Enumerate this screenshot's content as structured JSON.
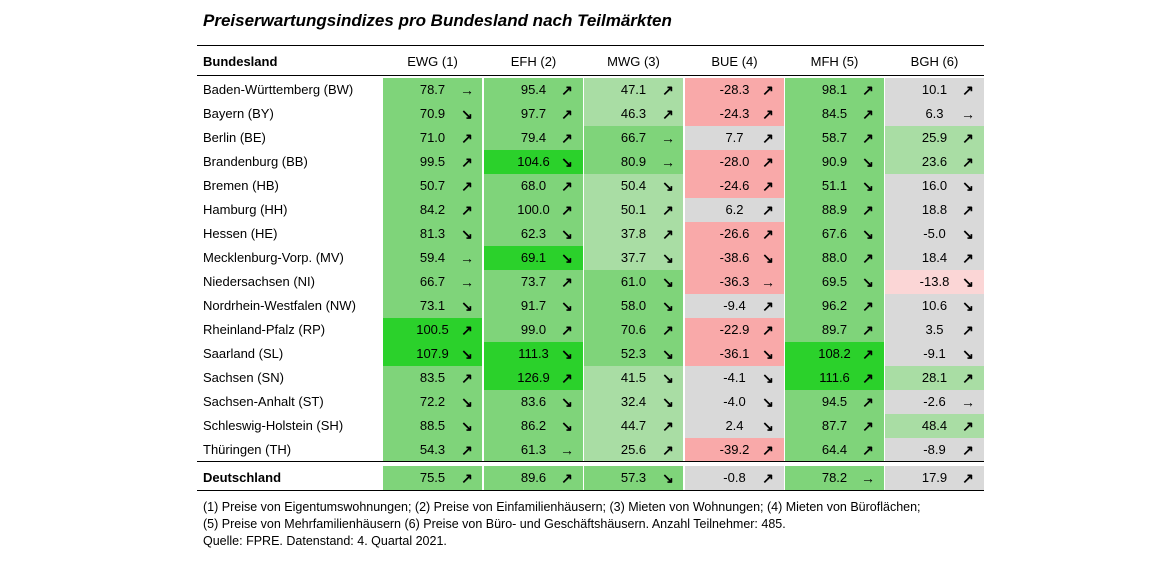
{
  "title": "Preiserwartungsindizes pro Bundesland nach Teilmärkten",
  "header": {
    "row_label": "Bundesland",
    "columns": [
      "EWG (1)",
      "EFH (2)",
      "MWG (3)",
      "BUE (4)",
      "MFH (5)",
      "BGH (6)"
    ]
  },
  "colors": {
    "light_green": "#a9dda4",
    "medium_green": "#7fd47a",
    "bright_green": "#2bd12b",
    "grey": "#d9d9d9",
    "pink": "#f9a9a9",
    "light_pink": "#fbd6d6"
  },
  "rows": [
    {
      "label": "Baden-Württemberg (BW)",
      "values": [
        "78.7",
        "95.4",
        "47.1",
        "-28.3",
        "98.1",
        "10.1"
      ],
      "arrows": [
        "right",
        "up",
        "up",
        "up",
        "up",
        "up"
      ],
      "colors": [
        "medium_green",
        "medium_green",
        "light_green",
        "pink",
        "medium_green",
        "grey"
      ]
    },
    {
      "label": "Bayern (BY)",
      "values": [
        "70.9",
        "97.7",
        "46.3",
        "-24.3",
        "84.5",
        "6.3"
      ],
      "arrows": [
        "down",
        "up",
        "up",
        "up",
        "up",
        "right"
      ],
      "colors": [
        "medium_green",
        "medium_green",
        "light_green",
        "pink",
        "medium_green",
        "grey"
      ]
    },
    {
      "label": "Berlin (BE)",
      "values": [
        "71.0",
        "79.4",
        "66.7",
        "7.7",
        "58.7",
        "25.9"
      ],
      "arrows": [
        "up",
        "up",
        "right",
        "up",
        "up",
        "up"
      ],
      "colors": [
        "medium_green",
        "medium_green",
        "medium_green",
        "grey",
        "medium_green",
        "light_green"
      ]
    },
    {
      "label": "Brandenburg (BB)",
      "values": [
        "99.5",
        "104.6",
        "80.9",
        "-28.0",
        "90.9",
        "23.6"
      ],
      "arrows": [
        "up",
        "down",
        "right",
        "up",
        "down",
        "up"
      ],
      "colors": [
        "medium_green",
        "bright_green",
        "medium_green",
        "pink",
        "medium_green",
        "light_green"
      ]
    },
    {
      "label": "Bremen (HB)",
      "values": [
        "50.7",
        "68.0",
        "50.4",
        "-24.6",
        "51.1",
        "16.0"
      ],
      "arrows": [
        "up",
        "up",
        "down",
        "up",
        "down",
        "down"
      ],
      "colors": [
        "medium_green",
        "medium_green",
        "light_green",
        "pink",
        "medium_green",
        "grey"
      ]
    },
    {
      "label": "Hamburg (HH)",
      "values": [
        "84.2",
        "100.0",
        "50.1",
        "6.2",
        "88.9",
        "18.8"
      ],
      "arrows": [
        "up",
        "up",
        "up",
        "up",
        "up",
        "up"
      ],
      "colors": [
        "medium_green",
        "medium_green",
        "light_green",
        "grey",
        "medium_green",
        "grey"
      ]
    },
    {
      "label": "Hessen (HE)",
      "values": [
        "81.3",
        "62.3",
        "37.8",
        "-26.6",
        "67.6",
        "-5.0"
      ],
      "arrows": [
        "down",
        "down",
        "up",
        "up",
        "down",
        "down"
      ],
      "colors": [
        "medium_green",
        "medium_green",
        "light_green",
        "pink",
        "medium_green",
        "grey"
      ]
    },
    {
      "label": "Mecklenburg-Vorp. (MV)",
      "values": [
        "59.4",
        "69.1",
        "37.7",
        "-38.6",
        "88.0",
        "18.4"
      ],
      "arrows": [
        "right",
        "down",
        "down",
        "down",
        "up",
        "up"
      ],
      "colors": [
        "medium_green",
        "bright_green",
        "light_green",
        "pink",
        "medium_green",
        "grey"
      ]
    },
    {
      "label": "Niedersachsen (NI)",
      "values": [
        "66.7",
        "73.7",
        "61.0",
        "-36.3",
        "69.5",
        "-13.8"
      ],
      "arrows": [
        "right",
        "up",
        "down",
        "right",
        "down",
        "down"
      ],
      "colors": [
        "medium_green",
        "medium_green",
        "medium_green",
        "pink",
        "medium_green",
        "light_pink"
      ]
    },
    {
      "label": "Nordrhein-Westfalen (NW)",
      "values": [
        "73.1",
        "91.7",
        "58.0",
        "-9.4",
        "96.2",
        "10.6"
      ],
      "arrows": [
        "down",
        "down",
        "down",
        "up",
        "up",
        "down"
      ],
      "colors": [
        "medium_green",
        "medium_green",
        "medium_green",
        "grey",
        "medium_green",
        "grey"
      ]
    },
    {
      "label": "Rheinland-Pfalz (RP)",
      "values": [
        "100.5",
        "99.0",
        "70.6",
        "-22.9",
        "89.7",
        "3.5"
      ],
      "arrows": [
        "up",
        "up",
        "up",
        "up",
        "up",
        "up"
      ],
      "colors": [
        "bright_green",
        "medium_green",
        "medium_green",
        "pink",
        "medium_green",
        "grey"
      ]
    },
    {
      "label": "Saarland (SL)",
      "values": [
        "107.9",
        "111.3",
        "52.3",
        "-36.1",
        "108.2",
        "-9.1"
      ],
      "arrows": [
        "down",
        "down",
        "down",
        "down",
        "up",
        "down"
      ],
      "colors": [
        "bright_green",
        "bright_green",
        "medium_green",
        "pink",
        "bright_green",
        "grey"
      ]
    },
    {
      "label": "Sachsen (SN)",
      "values": [
        "83.5",
        "126.9",
        "41.5",
        "-4.1",
        "111.6",
        "28.1"
      ],
      "arrows": [
        "up",
        "up",
        "down",
        "down",
        "up",
        "up"
      ],
      "colors": [
        "medium_green",
        "bright_green",
        "light_green",
        "grey",
        "bright_green",
        "light_green"
      ]
    },
    {
      "label": "Sachsen-Anhalt (ST)",
      "values": [
        "72.2",
        "83.6",
        "32.4",
        "-4.0",
        "94.5",
        "-2.6"
      ],
      "arrows": [
        "down",
        "down",
        "down",
        "down",
        "up",
        "right"
      ],
      "colors": [
        "medium_green",
        "medium_green",
        "light_green",
        "grey",
        "medium_green",
        "grey"
      ]
    },
    {
      "label": "Schleswig-Holstein (SH)",
      "values": [
        "88.5",
        "86.2",
        "44.7",
        "2.4",
        "87.7",
        "48.4"
      ],
      "arrows": [
        "down",
        "down",
        "up",
        "down",
        "up",
        "up"
      ],
      "colors": [
        "medium_green",
        "medium_green",
        "light_green",
        "grey",
        "medium_green",
        "light_green"
      ]
    },
    {
      "label": "Thüringen (TH)",
      "values": [
        "54.3",
        "61.3",
        "25.6",
        "-39.2",
        "64.4",
        "-8.9"
      ],
      "arrows": [
        "up",
        "right",
        "up",
        "up",
        "up",
        "up"
      ],
      "colors": [
        "medium_green",
        "medium_green",
        "light_green",
        "pink",
        "medium_green",
        "grey"
      ]
    }
  ],
  "total": {
    "label": "Deutschland",
    "values": [
      "75.5",
      "89.6",
      "57.3",
      "-0.8",
      "78.2",
      "17.9"
    ],
    "arrows": [
      "up",
      "up",
      "down",
      "up",
      "right",
      "up"
    ],
    "colors": [
      "medium_green",
      "medium_green",
      "medium_green",
      "grey",
      "medium_green",
      "grey"
    ]
  },
  "footnotes": [
    "(1) Preise von Eigentumswohnungen; (2) Preise von Einfamilienhäusern; (3) Mieten von Wohnungen; (4) Mieten von Büroflächen;",
    "(5) Preise von Mehrfamilienhäusern (6) Preise von Büro- und Geschäftshäusern. Anzahl Teilnehmer: 485.",
    "Quelle: FPRE. Datenstand: 4. Quartal 2021."
  ]
}
